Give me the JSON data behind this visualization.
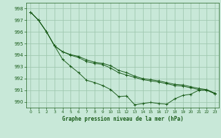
{
  "title": "Graphe pression niveau de la mer (hPa)",
  "bg_color": "#c8e8d8",
  "grid_color": "#a0c8b0",
  "line_color": "#1a5c1a",
  "xlim": [
    -0.5,
    23.5
  ],
  "ylim": [
    989.5,
    998.5
  ],
  "yticks": [
    990,
    991,
    992,
    993,
    994,
    995,
    996,
    997,
    998
  ],
  "xticks": [
    0,
    1,
    2,
    3,
    4,
    5,
    6,
    7,
    8,
    9,
    10,
    11,
    12,
    13,
    14,
    15,
    16,
    17,
    18,
    19,
    20,
    21,
    22,
    23
  ],
  "line1_y": [
    997.7,
    997.0,
    996.0,
    994.8,
    993.65,
    993.05,
    992.5,
    991.85,
    991.65,
    991.4,
    991.05,
    990.45,
    990.5,
    989.75,
    989.85,
    989.95,
    989.85,
    989.8,
    990.25,
    990.55,
    990.65,
    991.0,
    991.0,
    990.7
  ],
  "line2_y": [
    997.7,
    997.0,
    996.0,
    994.8,
    994.3,
    994.0,
    993.8,
    993.45,
    993.3,
    993.2,
    992.9,
    992.5,
    992.3,
    992.1,
    991.9,
    991.8,
    991.7,
    991.55,
    991.4,
    991.35,
    991.2,
    991.05,
    991.0,
    990.7
  ],
  "line3_y": [
    997.7,
    997.0,
    996.0,
    994.8,
    994.3,
    994.05,
    993.9,
    993.6,
    993.4,
    993.3,
    993.1,
    992.7,
    992.5,
    992.2,
    992.0,
    991.9,
    991.8,
    991.65,
    991.5,
    991.45,
    991.3,
    991.15,
    991.05,
    990.75
  ]
}
